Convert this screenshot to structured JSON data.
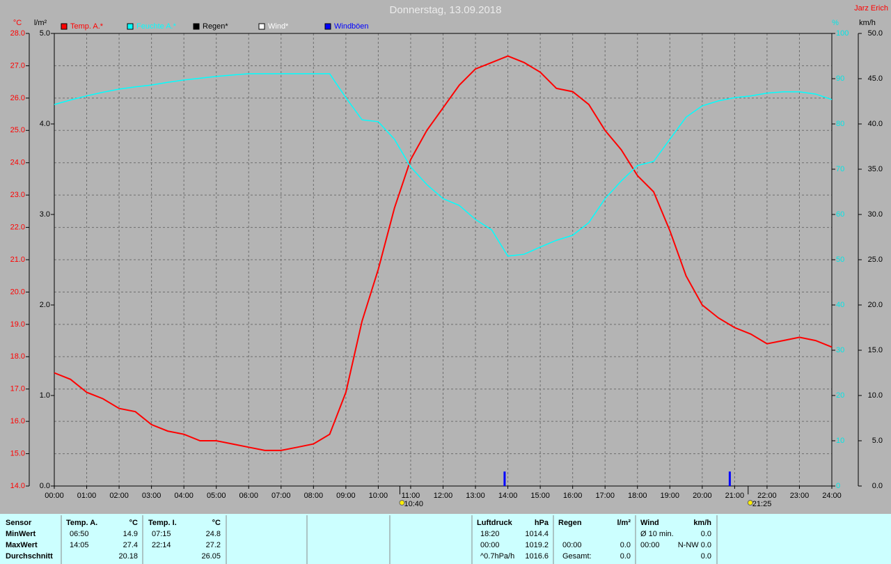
{
  "chart_data": {
    "type": "line",
    "title": "Donnerstag, 13.09.2018",
    "station": "Jarz Erich",
    "x": [
      0,
      0.5,
      1,
      1.5,
      2,
      2.5,
      3,
      3.5,
      4,
      4.5,
      5,
      5.5,
      6,
      6.5,
      7,
      7.5,
      8,
      8.5,
      9,
      9.5,
      10,
      10.5,
      11,
      11.5,
      12,
      12.5,
      13,
      13.5,
      14,
      14.5,
      15,
      15.5,
      16,
      16.5,
      17,
      17.5,
      18,
      18.5,
      19,
      19.5,
      20,
      20.5,
      21,
      21.5,
      22,
      22.5,
      23,
      23.5,
      24
    ],
    "xlim": [
      0,
      24
    ],
    "xticks": [
      {
        "value": 0,
        "label": "00:00"
      },
      {
        "value": 1,
        "label": "01:00"
      },
      {
        "value": 2,
        "label": "02:00"
      },
      {
        "value": 3,
        "label": "03:00"
      },
      {
        "value": 4,
        "label": "04:00"
      },
      {
        "value": 5,
        "label": "05:00"
      },
      {
        "value": 6,
        "label": "06:00"
      },
      {
        "value": 7,
        "label": "07:00"
      },
      {
        "value": 8,
        "label": "08:00"
      },
      {
        "value": 9,
        "label": "09:00"
      },
      {
        "value": 10,
        "label": "10:00"
      },
      {
        "value": 11,
        "label": "11:00"
      },
      {
        "value": 12,
        "label": "12:00"
      },
      {
        "value": 13,
        "label": "13:00"
      },
      {
        "value": 14,
        "label": "14:00"
      },
      {
        "value": 15,
        "label": "15:00"
      },
      {
        "value": 16,
        "label": "16:00"
      },
      {
        "value": 17,
        "label": "17:00"
      },
      {
        "value": 18,
        "label": "18:00"
      },
      {
        "value": 19,
        "label": "19:00"
      },
      {
        "value": 20,
        "label": "20:00"
      },
      {
        "value": 21,
        "label": "21:00"
      },
      {
        "value": 22,
        "label": "22:00"
      },
      {
        "value": 23,
        "label": "23:00"
      },
      {
        "value": 24,
        "label": "24:00"
      }
    ],
    "grid": true,
    "axes": [
      {
        "id": "temp",
        "label": "°C",
        "side": "left-outer",
        "color": "#ff0000",
        "lim": [
          14,
          28
        ],
        "ticks": [
          {
            "value": 14,
            "label": "14.0"
          },
          {
            "value": 15,
            "label": "15.0"
          },
          {
            "value": 16,
            "label": "16.0"
          },
          {
            "value": 17,
            "label": "17.0"
          },
          {
            "value": 18,
            "label": "18.0"
          },
          {
            "value": 19,
            "label": "19.0"
          },
          {
            "value": 20,
            "label": "20.0"
          },
          {
            "value": 21,
            "label": "21.0"
          },
          {
            "value": 22,
            "label": "22.0"
          },
          {
            "value": 23,
            "label": "23.0"
          },
          {
            "value": 24,
            "label": "24.0"
          },
          {
            "value": 25,
            "label": "25.0"
          },
          {
            "value": 26,
            "label": "26.0"
          },
          {
            "value": 27,
            "label": "27.0"
          },
          {
            "value": 28,
            "label": "28.0"
          }
        ]
      },
      {
        "id": "rain",
        "label": "l/m²",
        "side": "left-inner",
        "color": "#000000",
        "lim": [
          0,
          5
        ],
        "ticks": [
          {
            "value": 0,
            "label": "0.0"
          },
          {
            "value": 1,
            "label": "1.0"
          },
          {
            "value": 2,
            "label": "2.0"
          },
          {
            "value": 3,
            "label": "3.0"
          },
          {
            "value": 4,
            "label": "4.0"
          },
          {
            "value": 5,
            "label": "5.0"
          }
        ]
      },
      {
        "id": "hum",
        "label": "%",
        "side": "right-inner",
        "color": "#00e6e6",
        "lim": [
          0,
          100
        ],
        "ticks": [
          0,
          10,
          20,
          30,
          40,
          50,
          60,
          70,
          80,
          90,
          100
        ]
      },
      {
        "id": "wind",
        "label": "km/h",
        "side": "right-outer",
        "color": "#000000",
        "lim": [
          0,
          50
        ],
        "ticks": [
          {
            "value": 0,
            "label": "0.0"
          },
          {
            "value": 5,
            "label": "5.0"
          },
          {
            "value": 10,
            "label": "10.0"
          },
          {
            "value": 15,
            "label": "15.0"
          },
          {
            "value": 20,
            "label": "20.0"
          },
          {
            "value": 25,
            "label": "25.0"
          },
          {
            "value": 30,
            "label": "30.0"
          },
          {
            "value": 35,
            "label": "35.0"
          },
          {
            "value": 40,
            "label": "40.0"
          },
          {
            "value": 45,
            "label": "45.0"
          },
          {
            "value": 50,
            "label": "50.0"
          }
        ]
      }
    ],
    "series": [
      {
        "name": "Temp. A.*",
        "color": "#ff0000",
        "axis": "temp",
        "values": [
          17.5,
          17.3,
          16.9,
          16.7,
          16.4,
          16.3,
          15.9,
          15.7,
          15.6,
          15.4,
          15.4,
          15.3,
          15.2,
          15.1,
          15.1,
          15.2,
          15.3,
          15.6,
          16.9,
          19.1,
          20.7,
          22.6,
          24.1,
          25.0,
          25.7,
          26.4,
          26.9,
          27.1,
          27.3,
          27.1,
          26.8,
          26.3,
          26.2,
          25.8,
          25.0,
          24.4,
          23.6,
          23.1,
          21.9,
          20.5,
          19.6,
          19.2,
          18.9,
          18.7,
          18.4,
          18.5,
          18.6,
          18.5,
          18.3
        ]
      },
      {
        "name": "Feuchte A.*",
        "color": "#00ffff",
        "axis": "hum",
        "values": [
          84.3,
          85.3,
          86.2,
          87.0,
          87.7,
          88.2,
          88.6,
          89.2,
          89.7,
          90.1,
          90.5,
          90.8,
          91.1,
          91.1,
          91.1,
          91.1,
          91.1,
          91.1,
          85.8,
          80.9,
          80.5,
          76.6,
          70.5,
          66.6,
          63.5,
          62.0,
          58.9,
          56.6,
          50.8,
          51.2,
          52.8,
          54.3,
          55.4,
          58.2,
          63.5,
          67.4,
          70.8,
          71.7,
          76.6,
          81.5,
          84.0,
          85.1,
          85.8,
          86.2,
          86.8,
          87.1,
          87.1,
          86.6,
          85.4
        ]
      },
      {
        "name": "Regen*",
        "color": "#000000",
        "axis": "rain"
      },
      {
        "name": "Wind*",
        "color": "#ffffff",
        "axis": "wind"
      },
      {
        "name": "Windböen",
        "color": "#0000ff",
        "axis": "wind",
        "type": "spike",
        "x": [
          13.9,
          20.85
        ],
        "values": [
          1.6,
          1.6
        ]
      }
    ],
    "markers": [
      {
        "x": 10.667,
        "label": "10:40"
      },
      {
        "x": 21.417,
        "label": "21:25"
      }
    ]
  },
  "stats": {
    "row_labels": [
      "Sensor",
      "MinWert",
      "MaxWert",
      "Durchschnitt"
    ],
    "sections": [
      {
        "header": "Temp. A.",
        "unit": "°C",
        "rows": [
          {
            "time": "06:50",
            "value": "14.9"
          },
          {
            "time": "14:05",
            "value": "27.4"
          },
          {
            "value": "20.18"
          }
        ]
      },
      {
        "header": "Temp. I.",
        "unit": "°C",
        "rows": [
          {
            "time": "07:15",
            "value": "24.8"
          },
          {
            "time": "22:14",
            "value": "27.2"
          },
          {
            "value": "26.05"
          }
        ]
      },
      {
        "header": "Luftdruck",
        "unit": "hPa",
        "rows": [
          {
            "time": "18:20",
            "value": "1014.4"
          },
          {
            "time": "00:00",
            "value": "1019.2"
          },
          {
            "time": "^0.7hPa/h",
            "value": "1016.6"
          }
        ]
      },
      {
        "header": "Regen",
        "unit": "l/m²",
        "rows": [
          {},
          {
            "time": "00:00",
            "value": "0.0"
          },
          {
            "time": "Gesamt:",
            "value": "0.0"
          }
        ]
      },
      {
        "header": "Wind",
        "unit": "km/h",
        "rows": [
          {
            "time": "Ø 10 min.",
            "value": "0.0"
          },
          {
            "time": "00:00",
            "value": "N-NW 0.0"
          },
          {
            "value": "0.0"
          }
        ]
      }
    ]
  }
}
